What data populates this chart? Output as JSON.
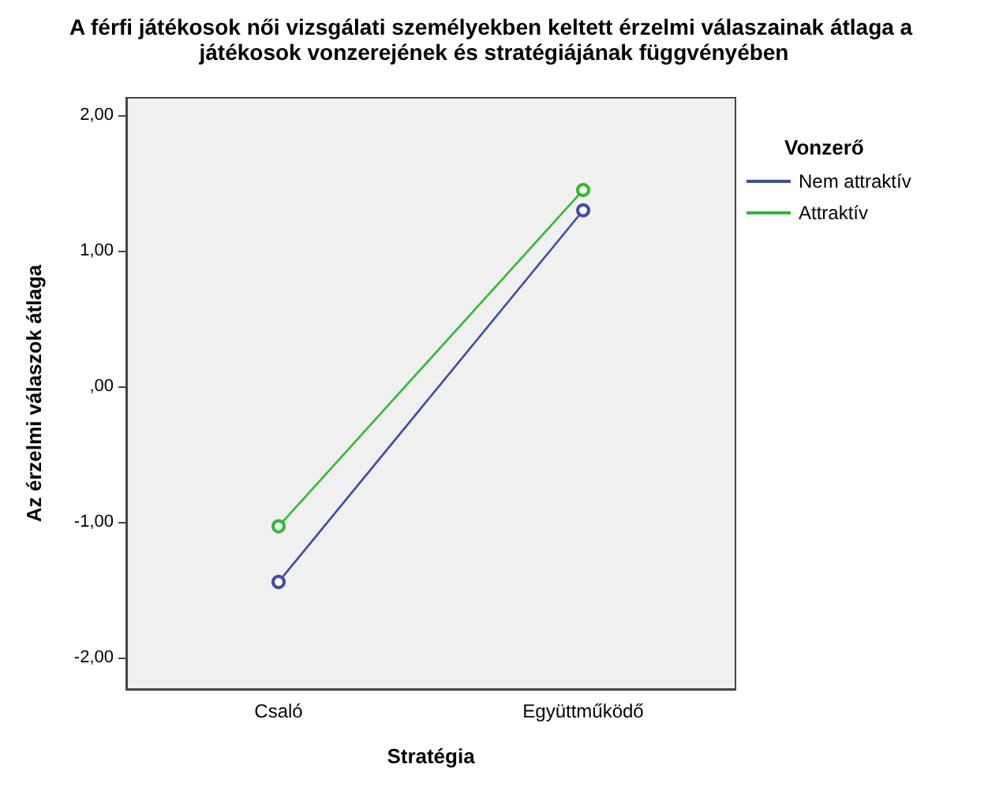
{
  "chart_data": {
    "type": "line",
    "title": "A férfi játékosok női vizsgálati személyekben keltett érzelmi válaszainak átlaga a játékosok vonzerejének és stratégiájának függvényében",
    "xlabel": "Stratégia",
    "ylabel": "Az érzelmi válaszok átlaga",
    "legend_title": "Vonzerő",
    "categories": [
      "Csaló",
      "Együttműködő"
    ],
    "series": [
      {
        "name": "Nem attraktív",
        "color": "#3e4ca6",
        "values": [
          -1.44,
          1.3
        ]
      },
      {
        "name": "Attraktív",
        "color": "#2dbd2d",
        "values": [
          -1.03,
          1.45
        ]
      }
    ],
    "ylim": [
      -2.23,
      2.13
    ],
    "yticks": [
      {
        "value": -2,
        "label": "-2,00"
      },
      {
        "value": -1,
        "label": "-1,00"
      },
      {
        "value": 0,
        "label": ",00"
      },
      {
        "value": 1,
        "label": "1,00"
      },
      {
        "value": 2,
        "label": "2,00"
      }
    ],
    "grid": false,
    "legend": "right",
    "marker": "circle",
    "line_style": "solid"
  }
}
